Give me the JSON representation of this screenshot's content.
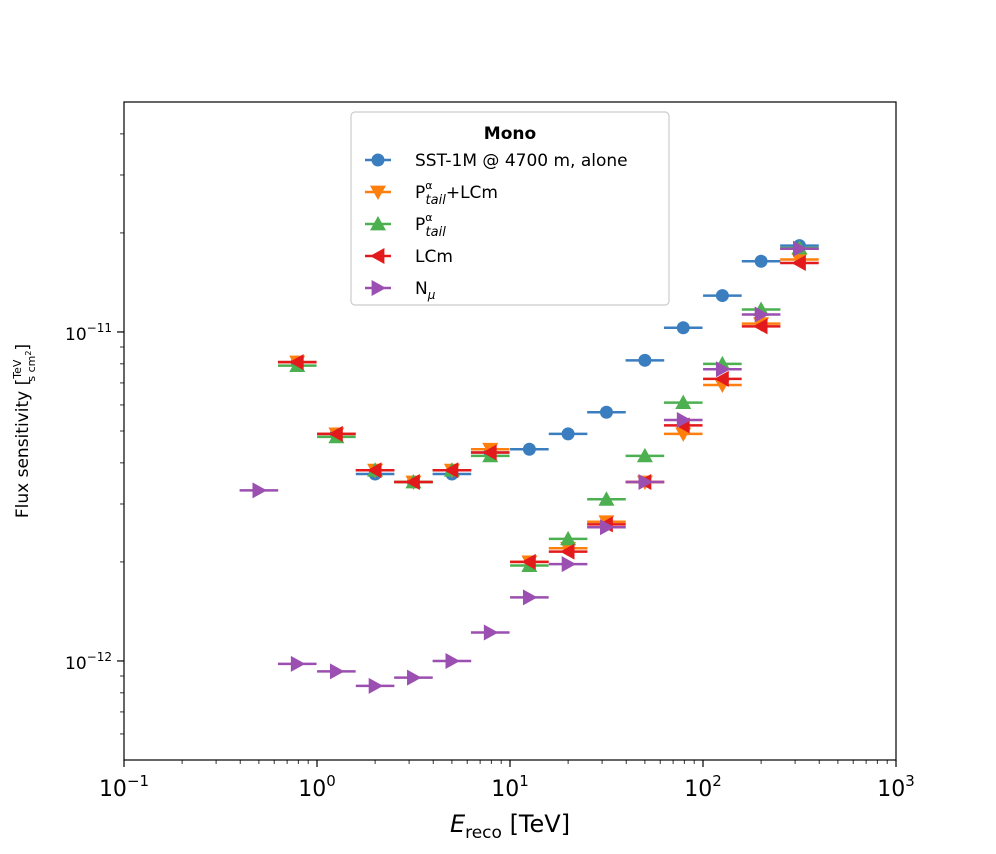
{
  "chart_data": {
    "type": "scatter",
    "xscale": "log",
    "yscale": "log",
    "xlim": [
      0.1,
      1000
    ],
    "ylim": [
      5e-13,
      5e-11
    ],
    "xlabel": {
      "main": "E",
      "sub": "reco",
      "unit": " [TeV]"
    },
    "ylabel": {
      "prefix": "Flux sensitivity [",
      "num": "TeV",
      "den": "s cm",
      "den_sup": "2",
      "suffix": "]"
    },
    "x_ticks": [
      {
        "value": 0.1,
        "base": "10",
        "exp": "−1"
      },
      {
        "value": 1,
        "base": "10",
        "exp": "0"
      },
      {
        "value": 10,
        "base": "10",
        "exp": "1"
      },
      {
        "value": 100,
        "base": "10",
        "exp": "2"
      },
      {
        "value": 1000,
        "base": "10",
        "exp": "3"
      }
    ],
    "y_ticks": [
      {
        "value": 1e-12,
        "base": "10",
        "exp": "−12"
      },
      {
        "value": 1e-11,
        "base": "10",
        "exp": "−11"
      }
    ],
    "legend": {
      "title": "Mono",
      "position": "upper-center"
    },
    "series": [
      {
        "name": "SST-1M @ 4700 m, alone",
        "color": "#3a7ebf",
        "marker": "circle",
        "x": [
          0.79,
          1.26,
          2.0,
          3.16,
          5.0,
          7.9,
          12.6,
          20.0,
          31.6,
          50.0,
          79.0,
          126.0,
          200.0,
          316.0
        ],
        "y": [
          8.1e-12,
          4.9e-12,
          3.7e-12,
          3.5e-12,
          3.7e-12,
          4.3e-12,
          4.4e-12,
          4.9e-12,
          5.7e-12,
          8.2e-12,
          1.03e-11,
          1.29e-11,
          1.64e-11,
          1.83e-11
        ]
      },
      {
        "name": "P_tail^α+LCm",
        "label_base": "P",
        "label_sup": "α",
        "label_sub": "tail",
        "label_suffix": "+LCm",
        "color": "#ff7f0e",
        "marker": "triangle-down",
        "x": [
          0.79,
          1.26,
          2.0,
          3.16,
          5.0,
          7.9,
          12.6,
          20.0,
          31.6,
          50.0,
          79.0,
          126.0,
          200.0,
          316.0
        ],
        "y": [
          8.1e-12,
          4.9e-12,
          3.8e-12,
          3.5e-12,
          3.8e-12,
          4.4e-12,
          2e-12,
          2.2e-12,
          2.65e-12,
          3.5e-12,
          4.9e-12,
          6.9e-12,
          1.06e-11,
          1.66e-11
        ]
      },
      {
        "name": "P_tail^α",
        "label_base": "P",
        "label_sup": "α",
        "label_sub": "tail",
        "label_suffix": "",
        "color": "#4caf50",
        "marker": "triangle-up",
        "x": [
          0.79,
          1.26,
          2.0,
          3.16,
          5.0,
          7.9,
          12.6,
          20.0,
          31.6,
          50.0,
          79.0,
          126.0,
          200.0,
          316.0
        ],
        "y": [
          7.9e-12,
          4.8e-12,
          3.8e-12,
          3.5e-12,
          3.8e-12,
          4.2e-12,
          1.95e-12,
          2.35e-12,
          3.1e-12,
          4.2e-12,
          6.1e-12,
          8e-12,
          1.17e-11,
          1.8e-11
        ]
      },
      {
        "name": "LCm",
        "color": "#e31a1c",
        "marker": "triangle-left",
        "x": [
          0.79,
          1.26,
          2.0,
          3.16,
          5.0,
          7.9,
          12.6,
          20.0,
          31.6,
          50.0,
          79.0,
          126.0,
          200.0,
          316.0
        ],
        "y": [
          8.1e-12,
          4.9e-12,
          3.8e-12,
          3.5e-12,
          3.8e-12,
          4.3e-12,
          2e-12,
          2.15e-12,
          2.6e-12,
          3.5e-12,
          5.2e-12,
          7.2e-12,
          1.04e-11,
          1.62e-11
        ]
      },
      {
        "name": "N_μ",
        "label_base": "N",
        "label_sub": "μ",
        "label_suffix": "",
        "color": "#9b4fb0",
        "marker": "triangle-right",
        "x": [
          0.5,
          0.79,
          1.26,
          2.0,
          3.16,
          5.0,
          7.9,
          12.6,
          20.0,
          31.6,
          50.0,
          79.0,
          126.0,
          200.0,
          316.0
        ],
        "y": [
          3.3e-12,
          9.8e-13,
          9.3e-13,
          8.4e-13,
          8.9e-13,
          1e-12,
          1.22e-12,
          1.56e-12,
          1.97e-12,
          2.55e-12,
          3.5e-12,
          5.4e-12,
          7.7e-12,
          1.13e-11,
          1.79e-11
        ]
      }
    ]
  }
}
